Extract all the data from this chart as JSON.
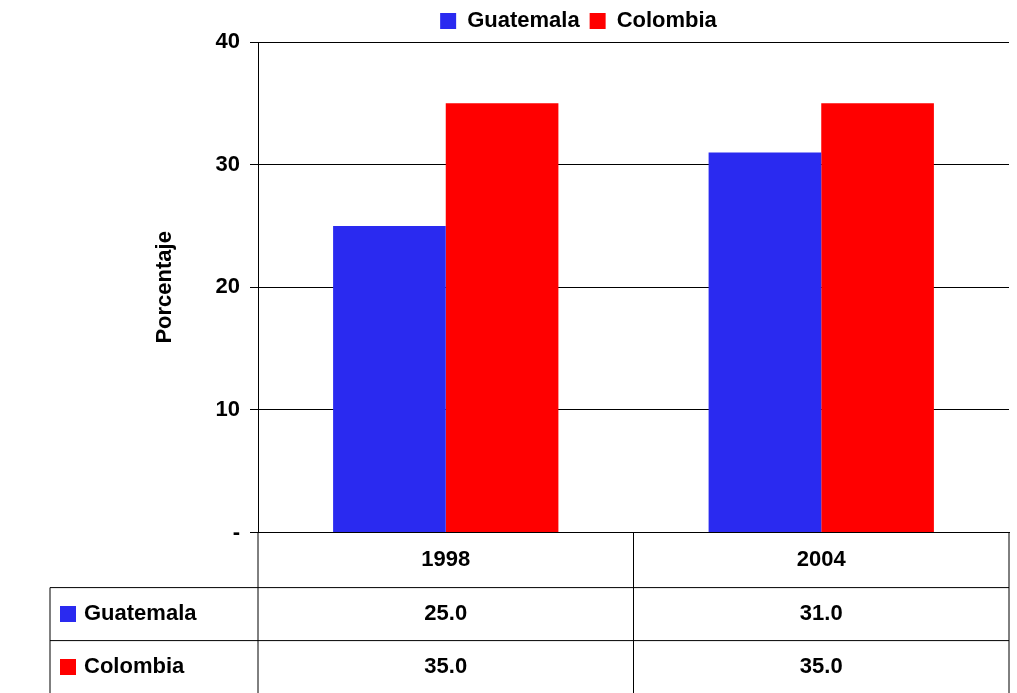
{
  "chart_data": {
    "type": "bar",
    "ylabel": "Porcentaje",
    "categories": [
      "1998",
      "2004"
    ],
    "series": [
      {
        "name": "Guatemala",
        "color": "#2a2af0",
        "values": [
          25,
          31
        ],
        "value_labels": [
          "25.0",
          "31.0"
        ]
      },
      {
        "name": "Colombia",
        "color": "#ff0000",
        "values": [
          35,
          35
        ],
        "value_labels": [
          "35.0",
          "35.0"
        ]
      }
    ],
    "ylim": [
      0,
      40
    ],
    "yticks": [
      {
        "value": 0,
        "label": "-"
      },
      10,
      20,
      30,
      40
    ],
    "grid": "y",
    "legend": "top"
  }
}
